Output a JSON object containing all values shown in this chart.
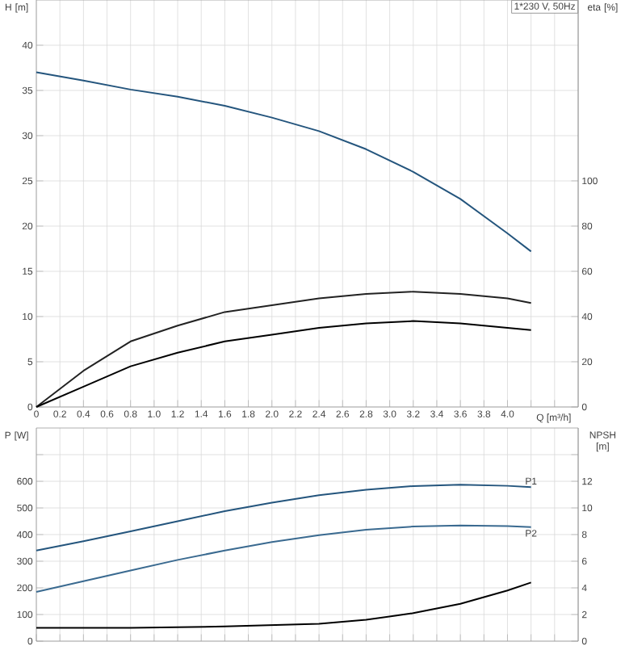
{
  "chart_data": [
    {
      "type": "line",
      "ylabel": "H [m]",
      "y2label": "eta [%]",
      "xlabel": "Q [m³/h]",
      "annotations": [
        "1*230 V, 50Hz"
      ],
      "x": [
        0,
        0.4,
        0.8,
        1.2,
        1.6,
        2.0,
        2.4,
        2.8,
        3.2,
        3.6,
        4.0,
        4.2
      ],
      "series": [
        {
          "color": "#24557d",
          "values": [
            37,
            36.1,
            35.1,
            34.3,
            33.3,
            32.0,
            30.5,
            28.5,
            26.0,
            23.0,
            19.2,
            17.2
          ]
        },
        {
          "color": "#222222",
          "axis": "y2",
          "values": [
            0,
            16,
            29,
            36,
            42,
            45,
            48,
            50,
            51,
            50,
            48,
            46
          ]
        },
        {
          "color": "#000000",
          "axis": "y2",
          "values": [
            0,
            9,
            18,
            24,
            29,
            32,
            35,
            37,
            38,
            37,
            35,
            34
          ]
        }
      ],
      "xlim": [
        0,
        4.6
      ],
      "xticks": [
        0,
        0.2,
        0.4,
        0.6,
        0.8,
        {
          "value": 1,
          "label": "1.0"
        },
        1.2,
        1.4,
        1.6,
        1.8,
        {
          "value": 2,
          "label": "2.0"
        },
        2.2,
        2.4,
        2.6,
        2.8,
        {
          "value": 3,
          "label": "3.0"
        },
        3.2,
        3.4,
        3.6,
        3.8,
        {
          "value": 4,
          "label": "4.0"
        },
        {
          "value": 4.2,
          "label": null
        },
        {
          "value": 4.4,
          "label": null
        }
      ],
      "ylim": [
        0,
        45
      ],
      "yticks": [
        0,
        5,
        10,
        15,
        20,
        25,
        30,
        35,
        40
      ],
      "y2lim": [
        0,
        180
      ],
      "y2ticks": [
        0,
        20,
        40,
        60,
        80,
        100
      ],
      "grid": true
    },
    {
      "type": "line",
      "ylabel": "P [W]",
      "y2label": "NPSH [m]",
      "x": [
        0,
        0.4,
        0.8,
        1.2,
        1.6,
        2.0,
        2.4,
        2.8,
        3.2,
        3.6,
        4.0,
        4.2
      ],
      "series": [
        {
          "name": "P1",
          "color": "#24557d",
          "values": [
            340,
            375,
            412,
            450,
            488,
            520,
            548,
            568,
            582,
            587,
            583,
            578
          ]
        },
        {
          "name": "P2",
          "color": "#3a6a90",
          "values": [
            185,
            225,
            265,
            305,
            340,
            372,
            398,
            418,
            430,
            434,
            432,
            428
          ]
        },
        {
          "color": "#000000",
          "axis": "y2",
          "x": [
            0,
            0.8,
            1.6,
            2.4,
            2.8,
            3.2,
            3.6,
            4.0,
            4.2
          ],
          "values": [
            1.0,
            1.0,
            1.1,
            1.3,
            1.6,
            2.1,
            2.8,
            3.8,
            4.4
          ]
        }
      ],
      "xlim": [
        0,
        4.6
      ],
      "xticks": [
        0,
        0.2,
        0.4,
        0.6,
        0.8,
        1,
        1.2,
        1.4,
        1.6,
        1.8,
        2,
        2.2,
        2.4,
        2.6,
        2.8,
        3,
        3.2,
        3.4,
        3.6,
        3.8,
        4,
        4.2,
        4.4
      ],
      "ylim": [
        0,
        800
      ],
      "yticks": [
        0,
        100,
        200,
        300,
        400,
        500,
        600,
        {
          "value": 700,
          "label": null
        }
      ],
      "y2lim": [
        0,
        16
      ],
      "y2ticks": [
        0,
        2,
        4,
        6,
        8,
        10,
        12,
        {
          "value": 14,
          "label": null
        }
      ],
      "tick_labels": "y",
      "grid": true
    }
  ]
}
